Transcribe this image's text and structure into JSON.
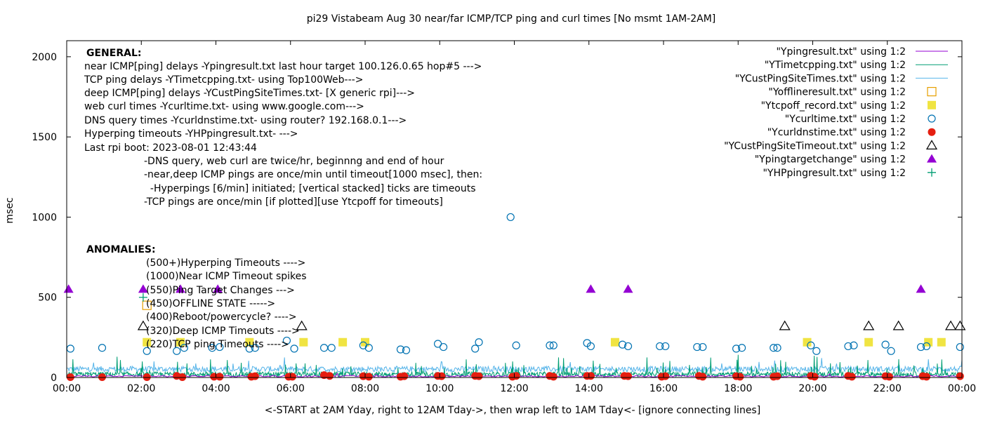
{
  "chart_data": {
    "type": "scatter",
    "title": "pi29 Vistabeam Aug 30  near/far ICMP/TCP ping and curl times [No msmt 1AM-2AM]",
    "xlabel": "<-START at 2AM Yday, right to 12AM Tday->, then wrap left to 1AM Tday<- [ignore connecting lines]",
    "ylabel": "msec",
    "xlim_hours": [
      0,
      24
    ],
    "ylim": [
      0,
      2100
    ],
    "x_ticks": [
      "00:00",
      "02:00",
      "04:00",
      "06:00",
      "08:00",
      "10:00",
      "12:00",
      "14:00",
      "16:00",
      "18:00",
      "20:00",
      "22:00",
      "00:00"
    ],
    "y_ticks": [
      "0",
      "500",
      "1000",
      "1500",
      "2000"
    ],
    "y_tick_values": [
      0,
      500,
      1000,
      1500,
      2000
    ],
    "grid": false,
    "legend_position": "top-right",
    "series": [
      {
        "name": "\"Ypingresult.txt\" using 1:2",
        "style": "line",
        "color": "#9400d3"
      },
      {
        "name": "\"YTimetcpping.txt\" using 1:2",
        "style": "line",
        "color": "#009e73"
      },
      {
        "name": "\"YCustPingSiteTimes.txt\" using 1:2",
        "style": "line",
        "color": "#56b4e9"
      },
      {
        "name": "\"Yofflineresult.txt\" using 1:2",
        "style": "open-square",
        "color": "#e69f00",
        "points": [
          [
            2.15,
            450
          ]
        ]
      },
      {
        "name": "\"Ytcpoff_record.txt\" using 1:2",
        "style": "filled-square",
        "color": "#f0e442",
        "points": [
          [
            2.15,
            220
          ],
          [
            3.05,
            220
          ],
          [
            4.9,
            220
          ],
          [
            6.35,
            220
          ],
          [
            7.4,
            220
          ],
          [
            8.0,
            220
          ],
          [
            14.7,
            220
          ],
          [
            19.85,
            220
          ],
          [
            21.5,
            220
          ],
          [
            23.1,
            220
          ],
          [
            23.45,
            220
          ]
        ]
      },
      {
        "name": "\"Ycurltime.txt\" using 1:2",
        "style": "open-circle",
        "color": "#0072b2",
        "points": [
          [
            0.1,
            180
          ],
          [
            0.95,
            185
          ],
          [
            2.15,
            165
          ],
          [
            2.95,
            165
          ],
          [
            3.15,
            185
          ],
          [
            3.9,
            185
          ],
          [
            4.1,
            190
          ],
          [
            4.9,
            180
          ],
          [
            5.05,
            185
          ],
          [
            5.9,
            230
          ],
          [
            6.1,
            180
          ],
          [
            6.9,
            185
          ],
          [
            7.1,
            185
          ],
          [
            7.95,
            200
          ],
          [
            8.1,
            185
          ],
          [
            8.95,
            175
          ],
          [
            9.1,
            170
          ],
          [
            9.95,
            210
          ],
          [
            10.1,
            190
          ],
          [
            10.95,
            180
          ],
          [
            11.05,
            220
          ],
          [
            11.9,
            1000
          ],
          [
            12.05,
            200
          ],
          [
            12.95,
            200
          ],
          [
            13.05,
            200
          ],
          [
            13.95,
            215
          ],
          [
            14.05,
            195
          ],
          [
            14.9,
            205
          ],
          [
            15.05,
            195
          ],
          [
            15.9,
            195
          ],
          [
            16.05,
            195
          ],
          [
            16.9,
            190
          ],
          [
            17.05,
            190
          ],
          [
            17.95,
            180
          ],
          [
            18.1,
            185
          ],
          [
            18.95,
            185
          ],
          [
            19.05,
            185
          ],
          [
            19.95,
            200
          ],
          [
            20.1,
            165
          ],
          [
            20.95,
            195
          ],
          [
            21.1,
            200
          ],
          [
            21.95,
            205
          ],
          [
            22.1,
            165
          ],
          [
            22.9,
            190
          ],
          [
            23.05,
            195
          ],
          [
            23.95,
            190
          ]
        ]
      },
      {
        "name": "\"Ycurldnstime.txt\" using 1:2",
        "style": "filled-circle",
        "color": "#e51e10",
        "points": [
          [
            0.1,
            2
          ],
          [
            0.95,
            2
          ],
          [
            2.15,
            2
          ],
          [
            2.95,
            10
          ],
          [
            3.1,
            2
          ],
          [
            3.95,
            5
          ],
          [
            4.1,
            5
          ],
          [
            4.95,
            5
          ],
          [
            5.05,
            8
          ],
          [
            5.95,
            5
          ],
          [
            6.05,
            5
          ],
          [
            6.9,
            15
          ],
          [
            7.05,
            10
          ],
          [
            7.95,
            8
          ],
          [
            8.1,
            5
          ],
          [
            8.95,
            5
          ],
          [
            9.05,
            8
          ],
          [
            9.95,
            10
          ],
          [
            10.05,
            8
          ],
          [
            10.95,
            10
          ],
          [
            11.05,
            8
          ],
          [
            11.95,
            5
          ],
          [
            12.05,
            10
          ],
          [
            12.95,
            10
          ],
          [
            13.05,
            5
          ],
          [
            13.95,
            10
          ],
          [
            14.05,
            10
          ],
          [
            14.95,
            10
          ],
          [
            15.05,
            8
          ],
          [
            15.95,
            5
          ],
          [
            16.05,
            8
          ],
          [
            16.95,
            10
          ],
          [
            17.05,
            5
          ],
          [
            17.95,
            8
          ],
          [
            18.05,
            5
          ],
          [
            18.95,
            5
          ],
          [
            19.05,
            8
          ],
          [
            19.95,
            10
          ],
          [
            20.05,
            5
          ],
          [
            20.95,
            10
          ],
          [
            21.05,
            5
          ],
          [
            21.95,
            8
          ],
          [
            22.05,
            5
          ],
          [
            22.95,
            8
          ],
          [
            23.05,
            5
          ],
          [
            23.95,
            8
          ]
        ]
      },
      {
        "name": "\"YCustPingSiteTimeout.txt\" using 1:2",
        "style": "open-triangle",
        "color": "#000000",
        "points": [
          [
            2.05,
            320
          ],
          [
            6.3,
            320
          ],
          [
            19.25,
            320
          ],
          [
            21.5,
            320
          ],
          [
            22.3,
            320
          ],
          [
            23.7,
            320
          ],
          [
            23.95,
            320
          ]
        ]
      },
      {
        "name": "\"Ypingtargetchange\" using 1:2",
        "style": "filled-triangle",
        "color": "#9400d3",
        "points": [
          [
            0.05,
            550
          ],
          [
            2.05,
            550
          ],
          [
            3.05,
            550
          ],
          [
            4.05,
            550
          ],
          [
            14.05,
            550
          ],
          [
            15.05,
            550
          ],
          [
            22.9,
            550
          ]
        ]
      },
      {
        "name": "\"YHPpingresult.txt\" using 1:2",
        "style": "plus",
        "color": "#009e73",
        "points": [
          [
            2.05,
            500
          ]
        ]
      }
    ],
    "annotations": {
      "general_heading": "GENERAL:",
      "general_lines": [
        "near ICMP[ping] delays -Ypingresult.txt last hour target 100.126.0.65 hop#5 --->",
        "TCP ping delays -YTimetcpping.txt- using Top100Web--->",
        "deep ICMP[ping] delays -YCustPingSiteTimes.txt- [X generic rpi]--->",
        "web curl times -Ycurltime.txt- using www.google.com--->",
        "DNS query times -Ycurldnstime.txt- using router? 192.168.0.1--->",
        "Hyperping timeouts -YHPpingresult.txt- --->",
        "Last rpi boot: 2023-08-01 12:43:44"
      ],
      "notes_lines": [
        "-DNS query, web curl are twice/hr, beginnng and end of hour",
        "-near,deep ICMP pings are once/min until timeout[1000 msec], then:",
        "  -Hyperpings [6/min] initiated; [vertical stacked] ticks are timeouts",
        "-TCP pings are once/min [if plotted][use Ytcpoff for timeouts]"
      ],
      "anomalies_heading": "ANOMALIES:",
      "anomaly_lines": [
        "(500+)Hyperping Timeouts ---->",
        "(1000)Near ICMP Timeout spikes",
        "(550)Ping Target Changes --->",
        "(450)OFFLINE STATE ----->",
        "(400)Reboot/powercycle? ---->",
        "(320)Deep ICMP Timeouts ---->",
        "(220)TCP ping Timeouts ---->"
      ]
    }
  }
}
